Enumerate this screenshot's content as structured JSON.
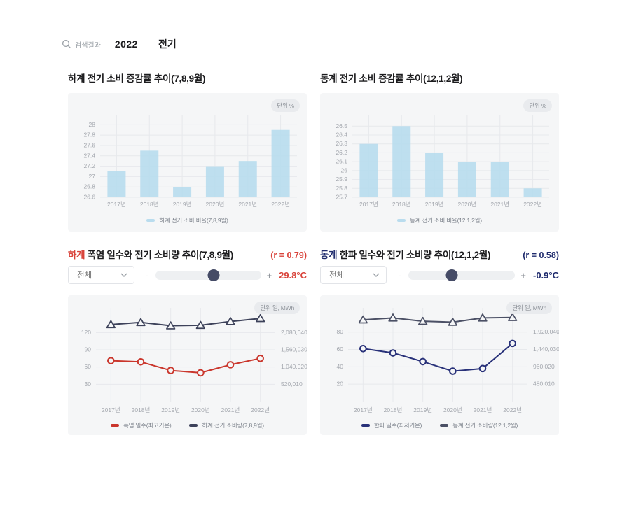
{
  "colors": {
    "accent_red": "#d9433a",
    "accent_navy": "#1f2b6d",
    "panel_bg": "#f5f6f7",
    "bar_fill": "#b9dcee",
    "line_red": "#ca362c",
    "line_dark_slate": "#3d425a",
    "line_blue": "#283179",
    "line_dark_gray": "#4b5065"
  },
  "search_bar": {
    "label": "검색결과",
    "year": "2022",
    "keyword": "전기"
  },
  "sections": {
    "summer_bar": {
      "title": "하계 전기 소비 증감률 추이(7,8,9월)"
    },
    "winter_bar": {
      "title": "동계 전기 소비 증감률 추이(12,1,2월)"
    },
    "summer_line": {
      "highlight": "하계",
      "title_rest": " 폭염 일수와 전기 소비량 추이(7,8,9월)",
      "corr": "(r = 0.79)",
      "select_value": "전체",
      "minus": "-",
      "plus": "+",
      "temperature": "29.8°C",
      "slider_percent": 55
    },
    "winter_line": {
      "highlight": "동계",
      "title_rest": " 한파 일수와 전기 소비량 추이(12,1,2월)",
      "corr": "(r = 0.58)",
      "select_value": "전체",
      "minus": "-",
      "plus": "+",
      "temperature": "-0.9°C",
      "slider_percent": 41
    }
  },
  "chart_data": [
    {
      "id": "summer-share",
      "type": "bar",
      "title": "하계 전기 소비 증감률 추이(7,8,9월)",
      "unit": "단위 %",
      "categories": [
        "2017년",
        "2018년",
        "2019년",
        "2020년",
        "2021년",
        "2022년"
      ],
      "yticks": [
        26.6,
        26.8,
        27,
        27.2,
        27.4,
        27.6,
        27.8,
        28
      ],
      "ylim": [
        26.6,
        28.18
      ],
      "series": [
        {
          "name": "하계 전기 소비 비율(7,8,9월)",
          "color": "#b9dcee",
          "values": [
            27.1,
            27.5,
            26.8,
            27.2,
            27.3,
            27.9
          ]
        }
      ]
    },
    {
      "id": "winter-share",
      "type": "bar",
      "title": "동계 전기 소비 증감률 추이(12,1,2월)",
      "unit": "단위 %",
      "categories": [
        "2017년",
        "2018년",
        "2019년",
        "2020년",
        "2021년",
        "2022년"
      ],
      "yticks": [
        25.7,
        25.8,
        25.9,
        26,
        26.1,
        26.2,
        26.3,
        26.4,
        26.5
      ],
      "ylim": [
        25.7,
        26.62
      ],
      "series": [
        {
          "name": "동계 전기 소비 비율(12,1,2월)",
          "color": "#b9dcee",
          "values": [
            26.3,
            26.5,
            26.2,
            26.1,
            26.1,
            25.8
          ]
        }
      ]
    },
    {
      "id": "summer-corr",
      "type": "line",
      "unit": "단위 일, MWh",
      "categories": [
        "2017년",
        "2018년",
        "2019년",
        "2020년",
        "2021년",
        "2022년"
      ],
      "left_axis": {
        "ticks": [
          30,
          60,
          90,
          120
        ],
        "max": 163
      },
      "right_axis": {
        "labels": [
          "520,010",
          "1,040,020",
          "1,560,030",
          "2,080,040"
        ],
        "tick_values": [
          520010,
          1040020,
          1560030,
          2080040
        ],
        "max": 2825388
      },
      "series": [
        {
          "name": "폭염 일수(최고기온)",
          "axis": "left",
          "marker": "circle",
          "color": "#ca362c",
          "values": [
            71,
            69,
            54,
            50,
            64,
            75
          ]
        },
        {
          "name": "하계 전기 소비량(7,8,9월)",
          "axis": "right",
          "marker": "triangle",
          "color": "#3d425a",
          "values": [
            2322000,
            2386000,
            2287000,
            2301000,
            2415000,
            2507000
          ]
        }
      ]
    },
    {
      "id": "winter-corr",
      "type": "line",
      "unit": "단위 일, MWh",
      "categories": [
        "2017년",
        "2018년",
        "2019년",
        "2020년",
        "2021년",
        "2022년"
      ],
      "left_axis": {
        "ticks": [
          20,
          40,
          60,
          80
        ],
        "max": 108
      },
      "right_axis": {
        "labels": [
          "480,010",
          "960,020",
          "1,440,030",
          "1,920,040"
        ],
        "tick_values": [
          480010,
          960020,
          1440030,
          1920040
        ],
        "max": 2592054
      },
      "series": [
        {
          "name": "한파 일수(최저기온)",
          "axis": "left",
          "marker": "circle",
          "color": "#283179",
          "values": [
            61,
            56,
            46,
            35,
            38,
            67
          ]
        },
        {
          "name": "동계 전기 소비량(12,1,2월)",
          "axis": "right",
          "marker": "triangle",
          "color": "#4b5065",
          "values": [
            2262000,
            2314000,
            2222000,
            2196000,
            2314000,
            2328000
          ]
        }
      ]
    }
  ]
}
